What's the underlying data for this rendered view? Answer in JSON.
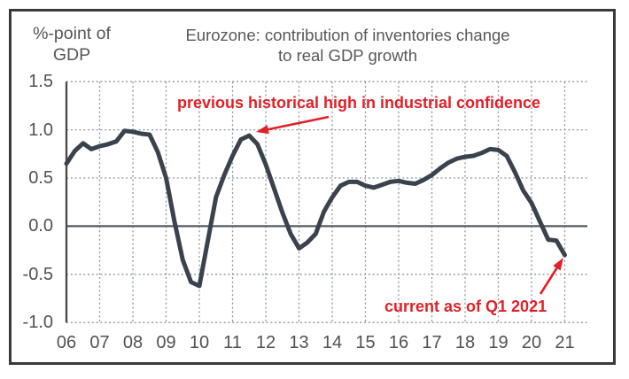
{
  "y_axis_unit": {
    "line1": "%-point of",
    "line2": "GDP"
  },
  "title": {
    "line1": "Eurozone: contribution of inventories change",
    "line2": "to real GDP growth"
  },
  "annotations": {
    "peak": "previous historical high in industrial confidence",
    "current": "current as of Q1 2021"
  },
  "colors": {
    "series_line": "#3a434d",
    "annotation_red": "#e11f27",
    "grid": "#8d95a0",
    "title_gray": "#57585a",
    "tick_gray": "#505153"
  },
  "chart_data": {
    "type": "line",
    "title": "Eurozone: contribution of inventories change to real GDP growth",
    "ylabel": "%-point of GDP",
    "frequency": "quarterly",
    "grid": "dotted",
    "ylim": [
      -1.0,
      1.5
    ],
    "y_ticks": [
      1.5,
      1.0,
      0.5,
      0.0,
      -0.5,
      -1.0
    ],
    "y_tick_labels": [
      "1.5",
      "1.0",
      "0.5",
      "0.0",
      "-0.5",
      "-1.0"
    ],
    "x_tick_labels": [
      "06",
      "07",
      "08",
      "09",
      "10",
      "11",
      "12",
      "13",
      "14",
      "15",
      "16",
      "17",
      "18",
      "19",
      "20",
      "21"
    ],
    "x_start": 2006,
    "x_interval_years": 0.25,
    "x_end": 2021.0,
    "series": [
      {
        "name": "Eurozone inventories change contribution to real GDP growth (%-point)",
        "values": [
          0.65,
          0.78,
          0.86,
          0.8,
          0.83,
          0.85,
          0.88,
          0.99,
          0.98,
          0.96,
          0.95,
          0.77,
          0.5,
          0.05,
          -0.35,
          -0.58,
          -0.62,
          -0.16,
          0.3,
          0.53,
          0.73,
          0.9,
          0.94,
          0.85,
          0.64,
          0.39,
          0.14,
          -0.08,
          -0.23,
          -0.17,
          -0.08,
          0.15,
          0.3,
          0.42,
          0.46,
          0.46,
          0.42,
          0.4,
          0.43,
          0.46,
          0.47,
          0.45,
          0.44,
          0.48,
          0.53,
          0.6,
          0.66,
          0.7,
          0.72,
          0.73,
          0.76,
          0.8,
          0.79,
          0.73,
          0.56,
          0.37,
          0.24,
          0.05,
          -0.14,
          -0.15,
          -0.3
        ]
      }
    ],
    "chart_annotations": [
      {
        "text": "previous historical high in industrial confidence",
        "points_to_x": 2011.5,
        "points_to_y": 0.94
      },
      {
        "text": "current as of Q1 2021",
        "points_to_x": 2021.0,
        "points_to_y": -0.3
      }
    ]
  }
}
